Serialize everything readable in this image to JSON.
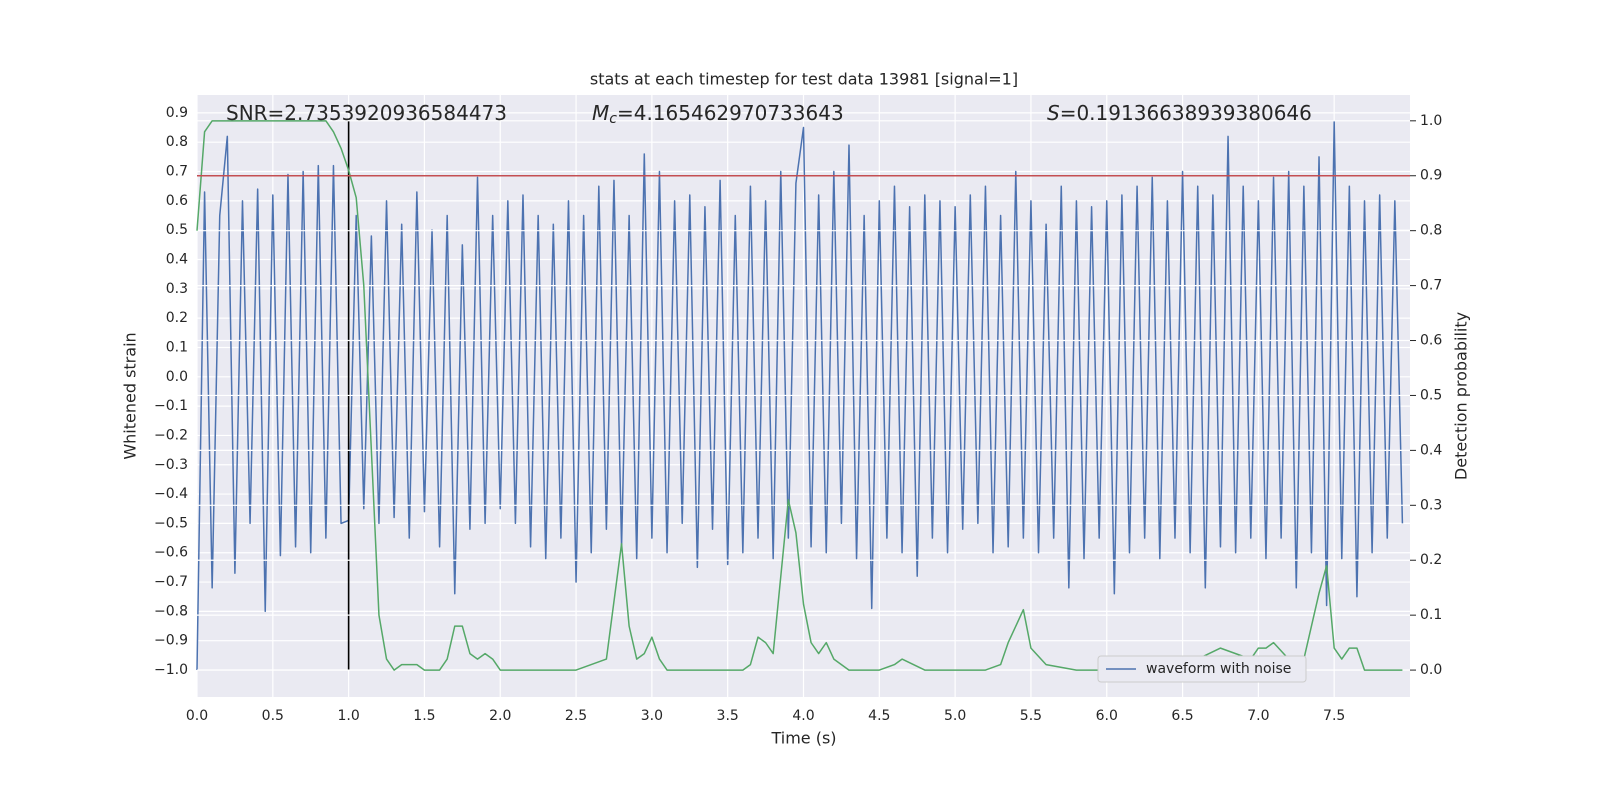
{
  "chart_data": {
    "type": "line",
    "title": "stats at each timestep for test data 13981 [signal=1]",
    "xlabel": "Time (s)",
    "ylabel": "Whitened strain",
    "y2label": "Detection probability",
    "annotations": [
      {
        "text": "SNR=2.7353920936584473"
      },
      {
        "symbol": "M",
        "subscript": "c",
        "text": "=4.165462970733643"
      },
      {
        "symbol": "S",
        "text": "=0.19136638939380646"
      }
    ],
    "xlim": [
      0,
      8
    ],
    "xticks": [
      {
        "value": 0,
        "label": "0.0"
      },
      0.5,
      {
        "value": 1,
        "label": "1.0"
      },
      1.5,
      {
        "value": 2,
        "label": "2.0"
      },
      2.5,
      {
        "value": 3,
        "label": "3.0"
      },
      3.5,
      {
        "value": 4,
        "label": "4.0"
      },
      4.5,
      {
        "value": 5,
        "label": "5.0"
      },
      5.5,
      {
        "value": 6,
        "label": "6.0"
      },
      6.5,
      {
        "value": 7,
        "label": "7.0"
      },
      7.5
    ],
    "ylim": [
      -1.092,
      0.961
    ],
    "yticks": [
      {
        "value": -1.0,
        "label": "−1.0"
      },
      {
        "value": -0.9,
        "label": "−0.9"
      },
      {
        "value": -0.8,
        "label": "−0.8"
      },
      {
        "value": -0.7,
        "label": "−0.7"
      },
      {
        "value": -0.6,
        "label": "−0.6"
      },
      {
        "value": -0.5,
        "label": "−0.5"
      },
      {
        "value": -0.4,
        "label": "−0.4"
      },
      {
        "value": -0.3,
        "label": "−0.3"
      },
      {
        "value": -0.2,
        "label": "−0.2"
      },
      {
        "value": -0.1,
        "label": "−0.1"
      },
      {
        "value": 0,
        "label": "0.0"
      },
      0.1,
      0.2,
      0.3,
      0.4,
      0.5,
      0.6,
      0.7,
      0.8,
      0.9
    ],
    "y2lim": [
      -0.049,
      1.047
    ],
    "y2ticks": [
      {
        "value": 0,
        "label": "0.0"
      },
      0.1,
      0.2,
      0.3,
      0.4,
      0.5,
      0.6,
      0.7,
      0.8,
      0.9,
      {
        "value": 1,
        "label": "1.0"
      }
    ],
    "grid": true,
    "legend": "lower right",
    "series": [
      {
        "name": "waveform with noise",
        "color": "#4c72b0",
        "x": [
          0,
          0.05,
          0.1,
          0.15,
          0.2,
          0.25,
          0.3,
          0.35,
          0.4,
          0.45,
          0.5,
          0.55,
          0.6,
          0.65,
          0.7,
          0.75,
          0.8,
          0.85,
          0.9,
          0.95,
          1,
          1.05,
          1.1,
          1.15,
          1.2,
          1.25,
          1.3,
          1.35,
          1.4,
          1.45,
          1.5,
          1.55,
          1.6,
          1.65,
          1.7,
          1.75,
          1.8,
          1.85,
          1.9,
          1.95,
          2,
          2.05,
          2.1,
          2.15,
          2.2,
          2.25,
          2.3,
          2.35,
          2.4,
          2.45,
          2.5,
          2.55,
          2.6,
          2.65,
          2.7,
          2.75,
          2.8,
          2.85,
          2.9,
          2.95,
          3,
          3.05,
          3.1,
          3.15,
          3.2,
          3.25,
          3.3,
          3.35,
          3.4,
          3.45,
          3.5,
          3.55,
          3.6,
          3.65,
          3.7,
          3.75,
          3.8,
          3.85,
          3.9,
          3.95,
          4,
          4.05,
          4.1,
          4.15,
          4.2,
          4.25,
          4.3,
          4.35,
          4.4,
          4.45,
          4.5,
          4.55,
          4.6,
          4.65,
          4.7,
          4.75,
          4.8,
          4.85,
          4.9,
          4.95,
          5,
          5.05,
          5.1,
          5.15,
          5.2,
          5.25,
          5.3,
          5.35,
          5.4,
          5.45,
          5.5,
          5.55,
          5.6,
          5.65,
          5.7,
          5.75,
          5.8,
          5.85,
          5.9,
          5.95,
          6,
          6.05,
          6.1,
          6.15,
          6.2,
          6.25,
          6.3,
          6.35,
          6.4,
          6.45,
          6.5,
          6.55,
          6.6,
          6.65,
          6.7,
          6.75,
          6.8,
          6.85,
          6.9,
          6.95,
          7,
          7.05,
          7.1,
          7.15,
          7.2,
          7.25,
          7.3,
          7.35,
          7.4,
          7.45,
          7.5,
          7.55,
          7.6,
          7.65,
          7.7,
          7.75,
          7.8,
          7.85,
          7.9,
          7.95
        ],
        "values": [
          -1.0,
          0.63,
          -0.72,
          0.55,
          0.82,
          -0.67,
          0.6,
          -0.5,
          0.64,
          -0.8,
          0.62,
          -0.61,
          0.69,
          -0.58,
          0.7,
          -0.6,
          0.72,
          -0.55,
          0.72,
          -0.5,
          -0.49,
          0.55,
          -0.45,
          0.48,
          -0.5,
          0.6,
          -0.48,
          0.52,
          -0.55,
          0.63,
          -0.46,
          0.5,
          -0.58,
          0.55,
          -0.74,
          0.45,
          -0.52,
          0.68,
          -0.5,
          0.55,
          -0.45,
          0.6,
          -0.5,
          0.62,
          -0.58,
          0.55,
          -0.62,
          0.52,
          -0.55,
          0.6,
          -0.7,
          0.55,
          -0.6,
          0.65,
          -0.52,
          0.67,
          -0.58,
          0.55,
          -0.62,
          0.76,
          -0.55,
          0.7,
          -0.6,
          0.6,
          -0.5,
          0.62,
          -0.65,
          0.58,
          -0.52,
          0.67,
          -0.64,
          0.55,
          -0.6,
          0.65,
          -0.55,
          0.6,
          -0.62,
          0.7,
          -0.55,
          0.66,
          0.85,
          -0.58,
          0.62,
          -0.6,
          0.7,
          -0.5,
          0.79,
          -0.62,
          0.55,
          -0.79,
          0.6,
          -0.55,
          0.65,
          -0.6,
          0.58,
          -0.68,
          0.62,
          -0.55,
          0.6,
          -0.6,
          0.58,
          -0.52,
          0.62,
          -0.5,
          0.65,
          -0.6,
          0.55,
          -0.58,
          0.7,
          -0.55,
          0.6,
          -0.6,
          0.52,
          -0.55,
          0.65,
          -0.72,
          0.6,
          -0.62,
          0.58,
          -0.55,
          0.6,
          -0.74,
          0.62,
          -0.6,
          0.65,
          -0.55,
          0.68,
          -0.62,
          0.6,
          -0.55,
          0.7,
          -0.6,
          0.65,
          -0.72,
          0.62,
          -0.58,
          0.82,
          -0.6,
          0.65,
          -0.55,
          0.6,
          -0.62,
          0.68,
          -0.55,
          0.7,
          -0.72,
          0.65,
          -0.6,
          0.75,
          -0.78,
          0.87,
          -0.62,
          0.65,
          -0.75,
          0.6,
          -0.6,
          0.62,
          -0.55,
          0.6,
          -0.5
        ]
      },
      {
        "color": "#55a868",
        "axis": "y2",
        "x": [
          0,
          0.05,
          0.1,
          0.15,
          0.3,
          0.5,
          0.7,
          0.85,
          0.9,
          0.95,
          1,
          1.05,
          1.1,
          1.15,
          1.2,
          1.25,
          1.3,
          1.35,
          1.45,
          1.5,
          1.6,
          1.65,
          1.7,
          1.75,
          1.8,
          1.85,
          1.9,
          1.95,
          2,
          2.1,
          2.3,
          2.5,
          2.6,
          2.7,
          2.8,
          2.85,
          2.9,
          2.95,
          3,
          3.05,
          3.1,
          3.2,
          3.4,
          3.6,
          3.65,
          3.7,
          3.75,
          3.8,
          3.9,
          3.95,
          4,
          4.05,
          4.1,
          4.15,
          4.2,
          4.3,
          4.5,
          4.6,
          4.65,
          4.8,
          5,
          5.2,
          5.3,
          5.35,
          5.45,
          5.5,
          5.6,
          5.8,
          6,
          6.3,
          6.5,
          6.6,
          6.75,
          6.85,
          6.95,
          7,
          7.05,
          7.1,
          7.2,
          7.25,
          7.3,
          7.4,
          7.45,
          7.5,
          7.55,
          7.6,
          7.65,
          7.7,
          7.8,
          7.95
        ],
        "values": [
          0.8,
          0.98,
          1.0,
          1.0,
          1.0,
          1.0,
          1.0,
          1.0,
          0.98,
          0.95,
          0.91,
          0.86,
          0.7,
          0.4,
          0.1,
          0.02,
          0.0,
          0.01,
          0.01,
          0.0,
          0.0,
          0.02,
          0.08,
          0.08,
          0.03,
          0.02,
          0.03,
          0.02,
          0.0,
          0.0,
          0.0,
          0.0,
          0.01,
          0.02,
          0.23,
          0.08,
          0.02,
          0.03,
          0.06,
          0.02,
          0.0,
          0.0,
          0.0,
          0.0,
          0.01,
          0.06,
          0.05,
          0.03,
          0.31,
          0.25,
          0.12,
          0.05,
          0.03,
          0.05,
          0.02,
          0.0,
          0.0,
          0.01,
          0.02,
          0.0,
          0.0,
          0.0,
          0.01,
          0.05,
          0.11,
          0.04,
          0.01,
          0.0,
          0.0,
          0.0,
          0.01,
          0.02,
          0.04,
          0.03,
          0.02,
          0.04,
          0.04,
          0.05,
          0.02,
          0.01,
          0.02,
          0.14,
          0.19,
          0.04,
          0.02,
          0.04,
          0.04,
          0.0,
          0.0,
          0.0
        ]
      }
    ],
    "hlines": [
      {
        "y": 0.9,
        "axis": "y2",
        "color": "#c44e52"
      }
    ],
    "vlines": [
      {
        "x": 1.0,
        "axis": "y2",
        "ymin": 0,
        "ymax": 1,
        "color": "#000000"
      }
    ]
  }
}
